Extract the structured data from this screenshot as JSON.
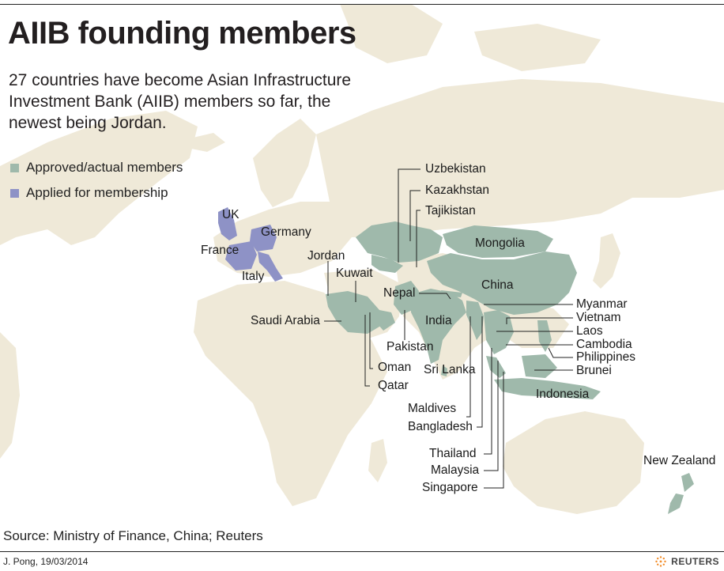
{
  "title": "AIIB founding members",
  "subtitle": "27 countries have become Asian Infrastructure Investment Bank (AIIB) members so far, the newest being Jordan.",
  "colors": {
    "background": "#ffffff",
    "land": "#efe9d8",
    "approved": "#9fb9ab",
    "applied": "#8e92c6",
    "leader_line": "#222222"
  },
  "legend": {
    "approved": "Approved/actual members",
    "applied": "Applied for membership"
  },
  "labels": {
    "uk": "UK",
    "germany": "Germany",
    "france": "France",
    "italy": "Italy",
    "jordan": "Jordan",
    "kuwait": "Kuwait",
    "saudi_arabia": "Saudi Arabia",
    "oman": "Oman",
    "qatar": "Qatar",
    "pakistan": "Pakistan",
    "sri_lanka": "Sri Lanka",
    "india": "India",
    "nepal": "Nepal",
    "uzbekistan": "Uzbekistan",
    "kazakhstan": "Kazakhstan",
    "tajikistan": "Tajikistan",
    "mongolia": "Mongolia",
    "china": "China",
    "myanmar": "Myanmar",
    "vietnam": "Vietnam",
    "laos": "Laos",
    "cambodia": "Cambodia",
    "philippines": "Philippines",
    "brunei": "Brunei",
    "indonesia": "Indonesia",
    "maldives": "Maldives",
    "bangladesh": "Bangladesh",
    "thailand": "Thailand",
    "malaysia": "Malaysia",
    "singapore": "Singapore",
    "new_zealand": "New Zealand"
  },
  "source": "Source: Ministry of Finance, China; Reuters",
  "credit": "J. Pong, 19/03/2014",
  "logo_text": "REUTERS",
  "logo_icon": "reuters-dots-icon"
}
